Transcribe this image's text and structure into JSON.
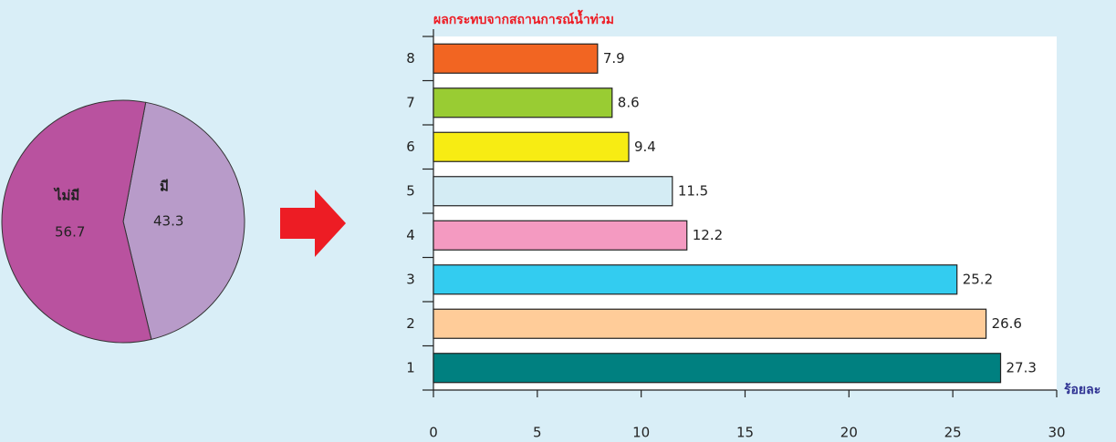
{
  "chart_data": [
    {
      "type": "pie",
      "categories": [
        "ไม่มี",
        "มี"
      ],
      "values": [
        56.7,
        43.3
      ],
      "colors": [
        "#b9529f",
        "#b89bc9"
      ]
    },
    {
      "type": "bar",
      "title": "ผลกระทบจากสถานการณ์น้ำท่วม",
      "orientation": "horizontal",
      "categories": [
        "1",
        "2",
        "3",
        "4",
        "5",
        "6",
        "7",
        "8"
      ],
      "values": [
        27.3,
        26.6,
        25.2,
        12.2,
        11.5,
        9.4,
        8.6,
        7.9
      ],
      "colors": [
        "#008080",
        "#ffcc99",
        "#33ccf0",
        "#f49ac1",
        "#d4ecf4",
        "#f7ec13",
        "#99cc33",
        "#f26522"
      ],
      "xlim": [
        0,
        30
      ],
      "xticks": [
        0,
        5,
        10,
        15,
        20,
        25,
        30
      ],
      "x_label": "ร้อยละ"
    }
  ]
}
